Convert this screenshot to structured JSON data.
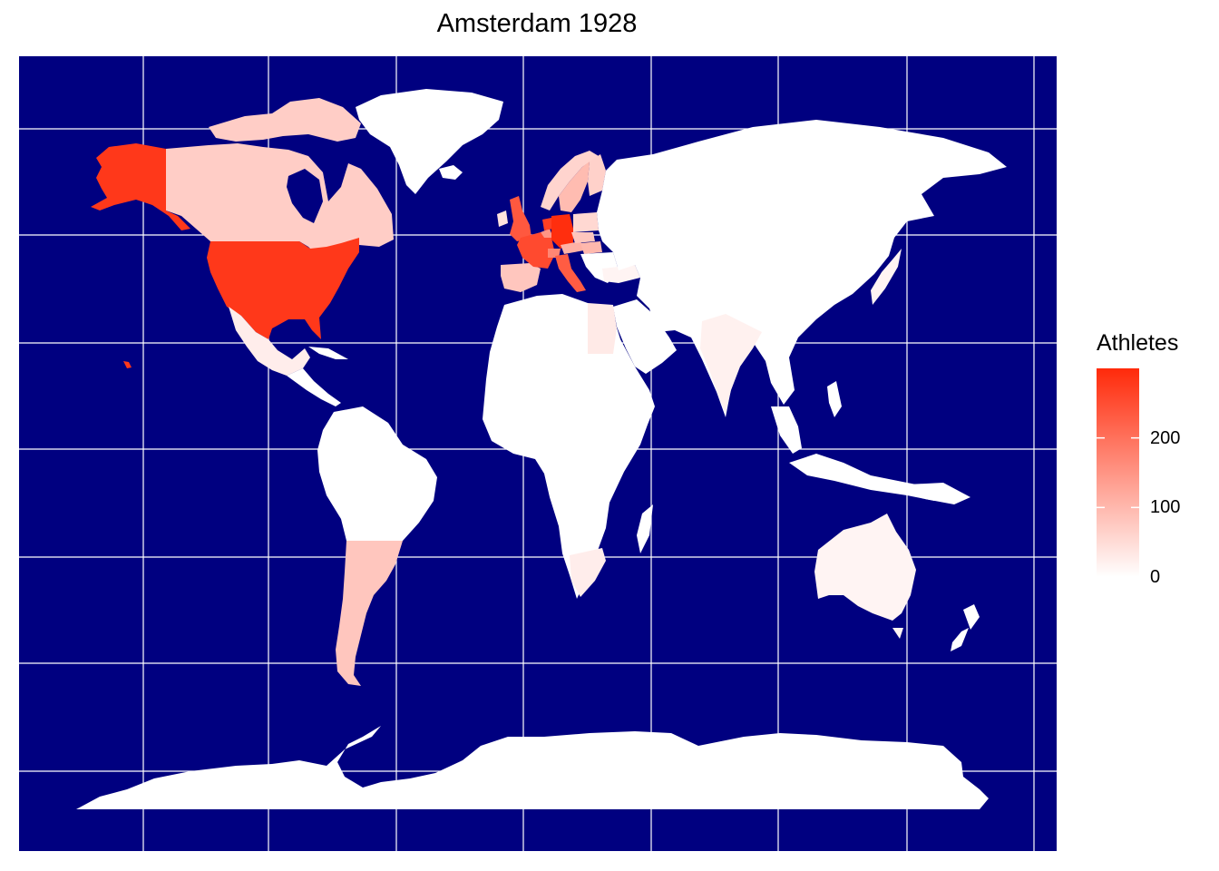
{
  "title": "Amsterdam 1928",
  "colors": {
    "ocean": "#000080",
    "grid": "#ffffff",
    "low": "#ffffff",
    "high": "#ff2a0a",
    "land_default": "#ffffff"
  },
  "legend": {
    "title": "Athletes",
    "ticks": [
      {
        "label": "0",
        "value": 0
      },
      {
        "label": "100",
        "value": 100
      },
      {
        "label": "200",
        "value": 200
      }
    ],
    "max": 300
  },
  "regions": [
    {
      "name": "United States",
      "athletes": 280
    },
    {
      "name": "Germany",
      "athletes": 295
    },
    {
      "name": "France",
      "athletes": 255
    },
    {
      "name": "United Kingdom",
      "athletes": 235
    },
    {
      "name": "Italy",
      "athletes": 230
    },
    {
      "name": "Netherlands",
      "athletes": 270
    },
    {
      "name": "Switzerland",
      "athletes": 170
    },
    {
      "name": "Canada",
      "athletes": 70
    },
    {
      "name": "Argentina",
      "athletes": 80
    },
    {
      "name": "Spain",
      "athletes": 80
    },
    {
      "name": "Sweden",
      "athletes": 95
    },
    {
      "name": "Norway",
      "athletes": 60
    },
    {
      "name": "Finland",
      "athletes": 65
    },
    {
      "name": "Poland",
      "athletes": 55
    },
    {
      "name": "Belgium",
      "athletes": 150
    },
    {
      "name": "Austria",
      "athletes": 110
    },
    {
      "name": "Hungary",
      "athletes": 100
    },
    {
      "name": "Czechoslovakia",
      "athletes": 80
    },
    {
      "name": "Egypt",
      "athletes": 30
    },
    {
      "name": "India",
      "athletes": 20
    },
    {
      "name": "Australia",
      "athletes": 15
    },
    {
      "name": "South Africa",
      "athletes": 25
    },
    {
      "name": "Mexico",
      "athletes": 25
    },
    {
      "name": "Japan",
      "athletes": 15
    },
    {
      "name": "Turkey",
      "athletes": 15
    },
    {
      "name": "Ireland",
      "athletes": 40
    }
  ]
}
